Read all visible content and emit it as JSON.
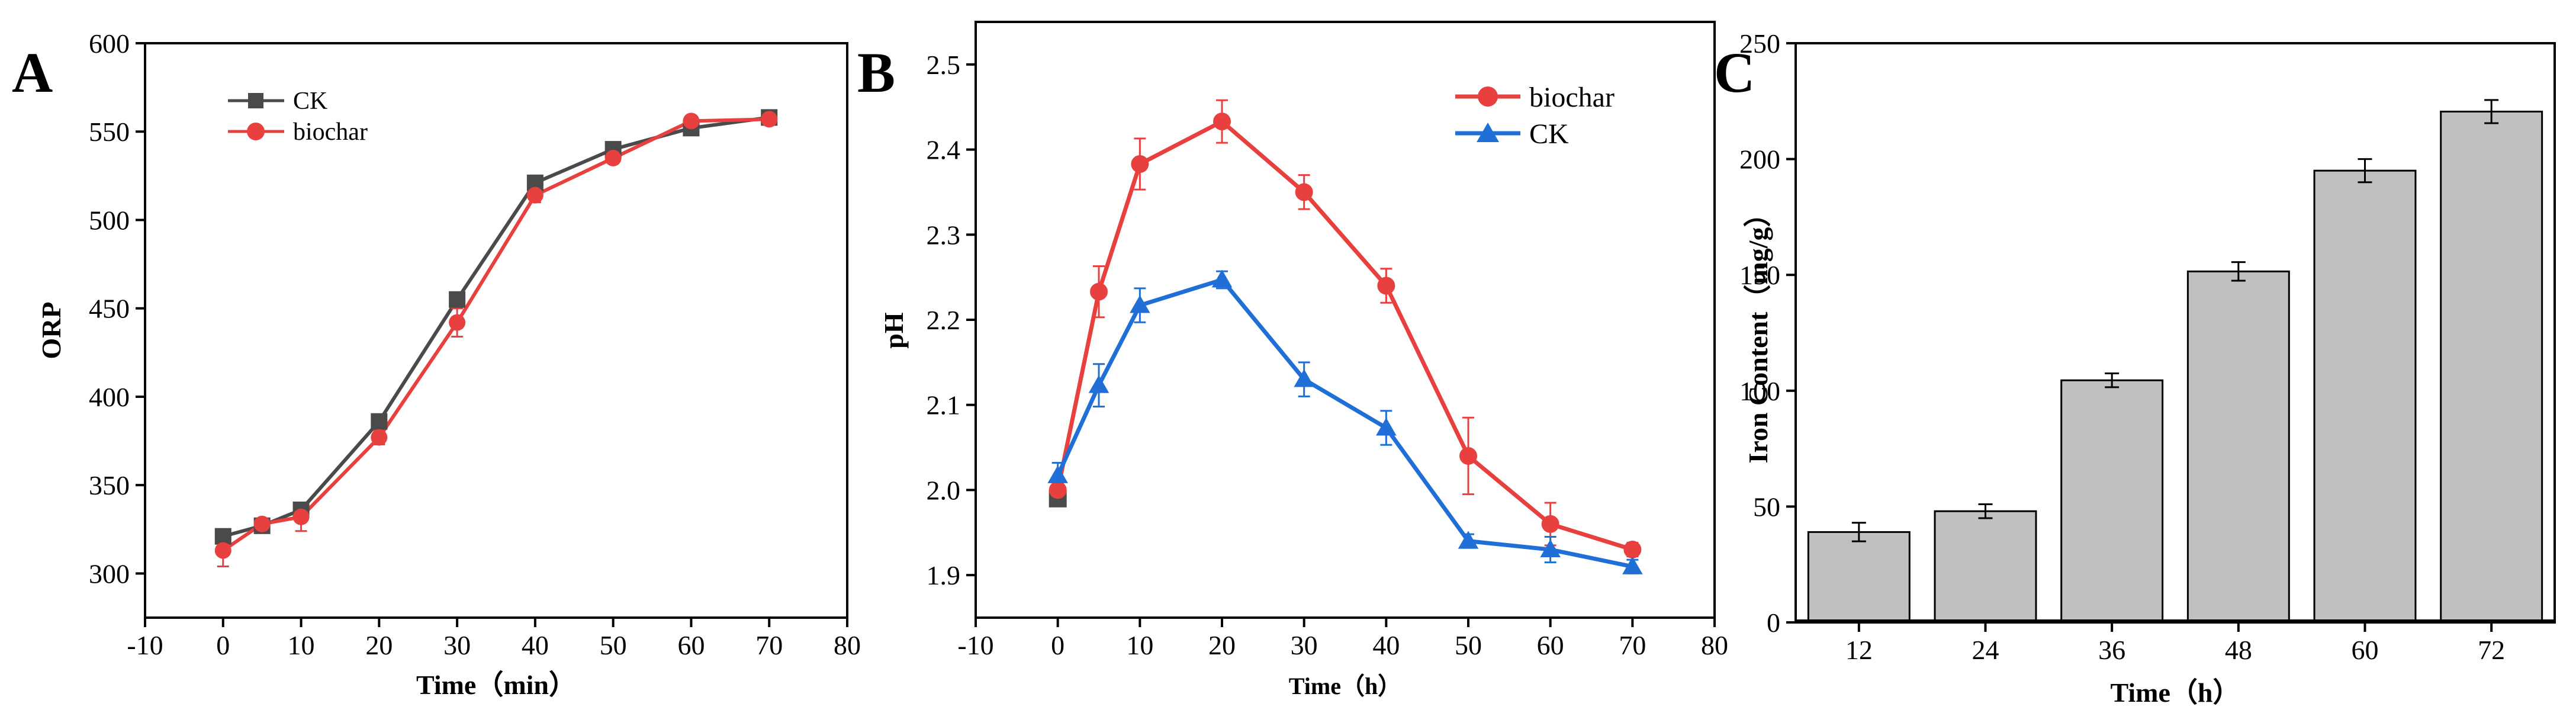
{
  "chart_data": [
    {
      "panel": "A",
      "type": "line",
      "xlabel": "Time（min）",
      "ylabel": "ORP",
      "xlim": [
        -10,
        80
      ],
      "ylim": [
        275,
        600
      ],
      "xticks": [
        -10,
        0,
        10,
        20,
        30,
        40,
        50,
        60,
        70,
        80
      ],
      "yticks": [
        300,
        350,
        400,
        450,
        500,
        550,
        600
      ],
      "legend_position": "top-left",
      "series": [
        {
          "name": "CK",
          "color": "#4a4a4a",
          "marker": "square",
          "x": [
            0,
            5,
            10,
            20,
            30,
            40,
            50,
            60,
            70
          ],
          "y": [
            321,
            327,
            336,
            386,
            455,
            521,
            540,
            552,
            558
          ],
          "err": [
            0,
            0,
            0,
            0,
            0,
            0,
            0,
            0,
            0
          ]
        },
        {
          "name": "biochar",
          "color": "#e8403f",
          "marker": "circle",
          "x": [
            0,
            5,
            10,
            20,
            30,
            40,
            50,
            60,
            70
          ],
          "y": [
            313,
            328,
            332,
            377,
            442,
            514,
            535,
            556,
            557
          ],
          "err": [
            9,
            3,
            8,
            4,
            8,
            4,
            3,
            2,
            2
          ]
        }
      ]
    },
    {
      "panel": "B",
      "type": "line",
      "xlabel": "Time（h）",
      "ylabel": "pH",
      "xlim": [
        -10,
        80
      ],
      "ylim": [
        1.85,
        2.55
      ],
      "xticks": [
        -10,
        0,
        10,
        20,
        30,
        40,
        50,
        60,
        70,
        80
      ],
      "yticks": [
        1.9,
        2.0,
        2.1,
        2.2,
        2.3,
        2.4,
        2.5
      ],
      "legend_position": "top-right",
      "series": [
        {
          "name": "biochar",
          "color": "#e8403f",
          "marker": "circle",
          "x": [
            0,
            5,
            10,
            20,
            30,
            40,
            50,
            60,
            70
          ],
          "y": [
            2.0,
            2.233,
            2.383,
            2.433,
            2.35,
            2.24,
            2.04,
            1.96,
            1.93
          ],
          "err": [
            0.005,
            0.03,
            0.03,
            0.025,
            0.02,
            0.02,
            0.045,
            0.025,
            0.008
          ]
        },
        {
          "name": "CK",
          "color": "#1f6fd6",
          "marker": "triangle",
          "x": [
            0,
            5,
            10,
            20,
            30,
            40,
            50,
            60,
            70
          ],
          "y": [
            2.017,
            2.123,
            2.217,
            2.247,
            2.13,
            2.073,
            1.94,
            1.93,
            1.91
          ],
          "err": [
            0.015,
            0.025,
            0.02,
            0.01,
            0.02,
            0.02,
            0.008,
            0.015,
            0.008
          ]
        }
      ],
      "extra_points": [
        {
          "x": 0,
          "y": 1.99,
          "color": "#4a4a4a",
          "marker": "square"
        }
      ]
    },
    {
      "panel": "C",
      "type": "bar",
      "xlabel": "Time（h）",
      "ylabel": "Iron Content（mg/g）",
      "ylim": [
        0,
        250
      ],
      "yticks": [
        0,
        50,
        100,
        150,
        200,
        250
      ],
      "categories": [
        "12",
        "24",
        "36",
        "48",
        "60",
        "72"
      ],
      "values": [
        39,
        48,
        104.5,
        151.5,
        195,
        220.5
      ],
      "err": [
        4,
        3,
        3,
        4,
        5,
        5
      ],
      "bar_color": "#c0c0c0"
    }
  ]
}
